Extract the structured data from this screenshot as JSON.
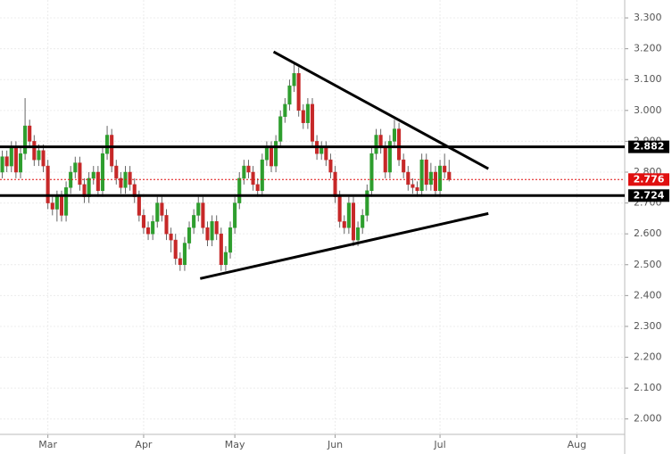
{
  "chart_data": {
    "type": "candlestick",
    "categories": [
      null,
      null,
      null,
      null,
      null,
      null,
      null,
      null,
      null,
      null,
      "Mar",
      null,
      null,
      null,
      null,
      null,
      null,
      null,
      null,
      null,
      null,
      null,
      null,
      null,
      null,
      null,
      null,
      null,
      null,
      null,
      null,
      "Apr",
      null,
      null,
      null,
      null,
      null,
      null,
      null,
      null,
      null,
      null,
      null,
      null,
      null,
      null,
      null,
      null,
      null,
      null,
      null,
      "May",
      null,
      null,
      null,
      null,
      null,
      null,
      null,
      null,
      null,
      null,
      null,
      null,
      null,
      null,
      null,
      null,
      null,
      null,
      null,
      null,
      null,
      "Jun",
      null,
      null,
      null,
      null,
      null,
      null,
      null,
      null,
      null,
      null,
      null,
      null,
      null,
      null,
      null,
      null,
      null,
      null,
      null,
      null,
      null,
      null,
      "Jul",
      null,
      null,
      null,
      null,
      null,
      null,
      null,
      null,
      null,
      null,
      null,
      null,
      null,
      null,
      null,
      null,
      null,
      null,
      null,
      null,
      null,
      null,
      null,
      null,
      null,
      null,
      null,
      null,
      null,
      "Aug",
      null,
      null,
      null,
      null,
      null,
      null,
      null,
      null,
      null,
      null
    ],
    "open": [
      2.8,
      2.85,
      2.82,
      2.88,
      2.8,
      2.86,
      2.95,
      2.9,
      2.84,
      2.87,
      2.82,
      2.7,
      2.68,
      2.72,
      2.66,
      2.75,
      2.8,
      2.83,
      2.76,
      2.72,
      2.78,
      2.8,
      2.74,
      2.86,
      2.92,
      2.82,
      2.78,
      2.75,
      2.8,
      2.76,
      2.72,
      2.66,
      2.62,
      2.6,
      2.64,
      2.7,
      2.66,
      2.6,
      2.58,
      2.52,
      2.5,
      2.57,
      2.62,
      2.66,
      2.7,
      2.62,
      2.58,
      2.64,
      2.6,
      2.5,
      2.54,
      2.62,
      2.7,
      2.78,
      2.82,
      2.8,
      2.76,
      2.74,
      2.84,
      2.88,
      2.82,
      2.9,
      2.98,
      3.02,
      3.08,
      3.12,
      3.0,
      2.96,
      3.02,
      2.9,
      2.86,
      2.88,
      2.84,
      2.8,
      2.72,
      2.64,
      2.62,
      2.7,
      2.58,
      2.62,
      2.66,
      2.74,
      2.86,
      2.92,
      2.88,
      2.8,
      2.9,
      2.94,
      2.84,
      2.8,
      2.76,
      2.75,
      2.74,
      2.84,
      2.76,
      2.8,
      2.74,
      2.82,
      2.8,
      null,
      null,
      null,
      null,
      null,
      null,
      null,
      null,
      null,
      null,
      null,
      null,
      null,
      null,
      null,
      null,
      null,
      null,
      null,
      null,
      null,
      null,
      null,
      null,
      null,
      null,
      null,
      null,
      null,
      null,
      null,
      null,
      null,
      null,
      null,
      null,
      null,
      null
    ],
    "high": [
      2.87,
      2.87,
      2.9,
      2.9,
      2.88,
      3.04,
      2.97,
      2.92,
      2.89,
      2.89,
      2.84,
      2.72,
      2.74,
      2.74,
      2.77,
      2.82,
      2.85,
      2.85,
      2.78,
      2.8,
      2.82,
      2.82,
      2.88,
      2.95,
      2.94,
      2.84,
      2.8,
      2.82,
      2.82,
      2.78,
      2.74,
      2.68,
      2.64,
      2.66,
      2.72,
      2.72,
      2.68,
      2.62,
      2.6,
      2.54,
      2.59,
      2.64,
      2.68,
      2.72,
      2.72,
      2.64,
      2.66,
      2.66,
      2.62,
      2.56,
      2.64,
      2.72,
      2.8,
      2.84,
      2.84,
      2.82,
      2.78,
      2.86,
      2.9,
      2.9,
      2.92,
      3.0,
      3.04,
      3.1,
      3.15,
      3.14,
      3.02,
      3.04,
      3.04,
      2.92,
      2.9,
      2.9,
      2.86,
      2.82,
      2.74,
      2.66,
      2.72,
      2.72,
      2.64,
      2.68,
      2.76,
      2.88,
      2.94,
      2.94,
      2.9,
      2.92,
      2.97,
      2.96,
      2.86,
      2.82,
      2.78,
      2.77,
      2.86,
      2.86,
      2.83,
      2.82,
      2.84,
      2.86,
      2.84,
      null,
      null,
      null,
      null,
      null,
      null,
      null,
      null,
      null,
      null,
      null,
      null,
      null,
      null,
      null,
      null,
      null,
      null,
      null,
      null,
      null,
      null,
      null,
      null,
      null,
      null,
      null,
      null,
      null,
      null,
      null,
      null,
      null,
      null,
      null,
      null,
      null,
      null
    ],
    "low": [
      2.78,
      2.8,
      2.8,
      2.78,
      2.78,
      2.84,
      2.88,
      2.82,
      2.82,
      2.8,
      2.68,
      2.66,
      2.64,
      2.64,
      2.64,
      2.73,
      2.78,
      2.74,
      2.7,
      2.7,
      2.76,
      2.72,
      2.72,
      2.84,
      2.8,
      2.76,
      2.73,
      2.73,
      2.74,
      2.7,
      2.64,
      2.6,
      2.58,
      2.58,
      2.62,
      2.64,
      2.58,
      2.54,
      2.5,
      2.48,
      2.48,
      2.55,
      2.6,
      2.64,
      2.6,
      2.56,
      2.56,
      2.58,
      2.48,
      2.48,
      2.52,
      2.6,
      2.68,
      2.76,
      2.78,
      2.74,
      2.72,
      2.72,
      2.82,
      2.8,
      2.8,
      2.88,
      2.96,
      3.0,
      3.06,
      2.98,
      2.94,
      2.94,
      2.88,
      2.84,
      2.84,
      2.82,
      2.78,
      2.7,
      2.62,
      2.6,
      2.6,
      2.56,
      2.56,
      2.6,
      2.64,
      2.72,
      2.84,
      2.86,
      2.78,
      2.78,
      2.88,
      2.82,
      2.78,
      2.74,
      2.73,
      2.72,
      2.72,
      2.74,
      2.74,
      2.72,
      2.72,
      2.78,
      2.77,
      null,
      null,
      null,
      null,
      null,
      null,
      null,
      null,
      null,
      null,
      null,
      null,
      null,
      null,
      null,
      null,
      null,
      null,
      null,
      null,
      null,
      null,
      null,
      null,
      null,
      null,
      null,
      null,
      null,
      null,
      null,
      null,
      null,
      null,
      null,
      null,
      null,
      null
    ],
    "close": [
      2.85,
      2.82,
      2.88,
      2.8,
      2.86,
      2.95,
      2.9,
      2.84,
      2.87,
      2.82,
      2.7,
      2.68,
      2.72,
      2.66,
      2.75,
      2.8,
      2.83,
      2.76,
      2.72,
      2.78,
      2.8,
      2.74,
      2.86,
      2.92,
      2.82,
      2.78,
      2.75,
      2.8,
      2.76,
      2.72,
      2.66,
      2.62,
      2.6,
      2.64,
      2.7,
      2.66,
      2.6,
      2.58,
      2.52,
      2.5,
      2.57,
      2.62,
      2.66,
      2.7,
      2.62,
      2.58,
      2.64,
      2.6,
      2.5,
      2.54,
      2.62,
      2.7,
      2.78,
      2.82,
      2.8,
      2.76,
      2.74,
      2.84,
      2.88,
      2.82,
      2.9,
      2.98,
      3.02,
      3.08,
      3.12,
      3.0,
      2.96,
      3.02,
      2.9,
      2.86,
      2.88,
      2.84,
      2.8,
      2.72,
      2.64,
      2.62,
      2.7,
      2.58,
      2.62,
      2.66,
      2.74,
      2.86,
      2.92,
      2.88,
      2.8,
      2.9,
      2.94,
      2.84,
      2.8,
      2.76,
      2.75,
      2.74,
      2.84,
      2.76,
      2.8,
      2.74,
      2.82,
      2.8,
      2.776,
      null,
      null,
      null,
      null,
      null,
      null,
      null,
      null,
      null,
      null,
      null,
      null,
      null,
      null,
      null,
      null,
      null,
      null,
      null,
      null,
      null,
      null,
      null,
      null,
      null,
      null,
      null,
      null,
      null,
      null,
      null,
      null,
      null,
      null,
      null,
      null,
      null,
      null
    ],
    "up_color": "#2e9e2e",
    "down_color": "#c62828",
    "ylim": [
      1.95,
      3.358
    ],
    "yticks": [
      {
        "value": 2.0,
        "label": "2.000"
      },
      {
        "value": 2.1,
        "label": "2.100"
      },
      {
        "value": 2.2,
        "label": "2.200"
      },
      {
        "value": 2.3,
        "label": "2.300"
      },
      {
        "value": 2.4,
        "label": "2.400"
      },
      {
        "value": 2.5,
        "label": "2.500"
      },
      {
        "value": 2.6,
        "label": "2.600"
      },
      {
        "value": 2.7,
        "label": "2.700"
      },
      {
        "value": 2.8,
        "label": "2.800"
      },
      {
        "value": 2.9,
        "label": "2.900"
      },
      {
        "value": 3.0,
        "label": "3.000"
      },
      {
        "value": 3.1,
        "label": "3.100"
      },
      {
        "value": 3.2,
        "label": "3.200"
      },
      {
        "value": 3.3,
        "label": "3.300"
      }
    ],
    "grid": true,
    "levels": [
      {
        "value": 2.882,
        "color": "#000000"
      },
      {
        "value": 2.724,
        "color": "#000000"
      }
    ],
    "last_price": {
      "value": 2.776,
      "color": "#e01010"
    },
    "trendlines": [
      {
        "x": [
          59.5,
          106.6
        ],
        "y": [
          3.19,
          2.811
        ],
        "color": "#000000"
      },
      {
        "x": [
          43.4,
          106.6
        ],
        "y": [
          2.455,
          2.666
        ],
        "color": "#000000"
      }
    ]
  }
}
